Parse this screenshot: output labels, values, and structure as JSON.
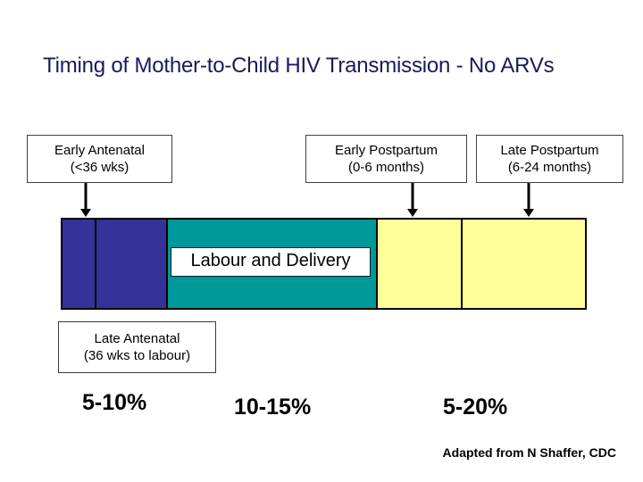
{
  "title": {
    "text": "Timing of Mother-to-Child HIV Transmission - No ARVs",
    "color": "#1a1a5c"
  },
  "callouts": {
    "early_antenatal": {
      "line1": "Early Antenatal",
      "line2": "(<36 wks)"
    },
    "early_postpartum": {
      "line1": "Early Postpartum",
      "line2": "(0-6 months)"
    },
    "late_postpartum": {
      "line1": "Late Postpartum",
      "line2": "(6-24 months)"
    },
    "late_antenatal": {
      "line1": "Late Antenatal",
      "line2": "(36 wks to labour)"
    },
    "labour_and_delivery": "Labour and Delivery"
  },
  "rates": {
    "antenatal": "5-10%",
    "labour_delivery": "10-15%",
    "postpartum": "5-20%"
  },
  "attribution": "Adapted from N Shaffer, CDC",
  "chart_data": {
    "type": "bar",
    "title": "Timing of Mother-to-Child HIV Transmission - No ARVs",
    "orientation": "horizontal-timeline",
    "legend_position": "none",
    "grid": false,
    "segments": [
      {
        "period": "Early Antenatal (<36 wks)",
        "color": "#333399",
        "relative_width": 37,
        "transmission_rate": "5-10%"
      },
      {
        "period": "Late Antenatal (36 wks to labour)",
        "color": "#333399",
        "relative_width": 80,
        "transmission_rate": "5-10%"
      },
      {
        "period": "Labour and Delivery",
        "color": "#009999",
        "relative_width": 235,
        "transmission_rate": "10-15%"
      },
      {
        "period": "Early Postpartum (0-6 months)",
        "color": "#FFFF99",
        "relative_width": 95,
        "transmission_rate": "5-20%"
      },
      {
        "period": "Late Postpartum (6-24 months)",
        "color": "#FFFF99",
        "relative_width": 138,
        "transmission_rate": "5-20%"
      }
    ]
  }
}
